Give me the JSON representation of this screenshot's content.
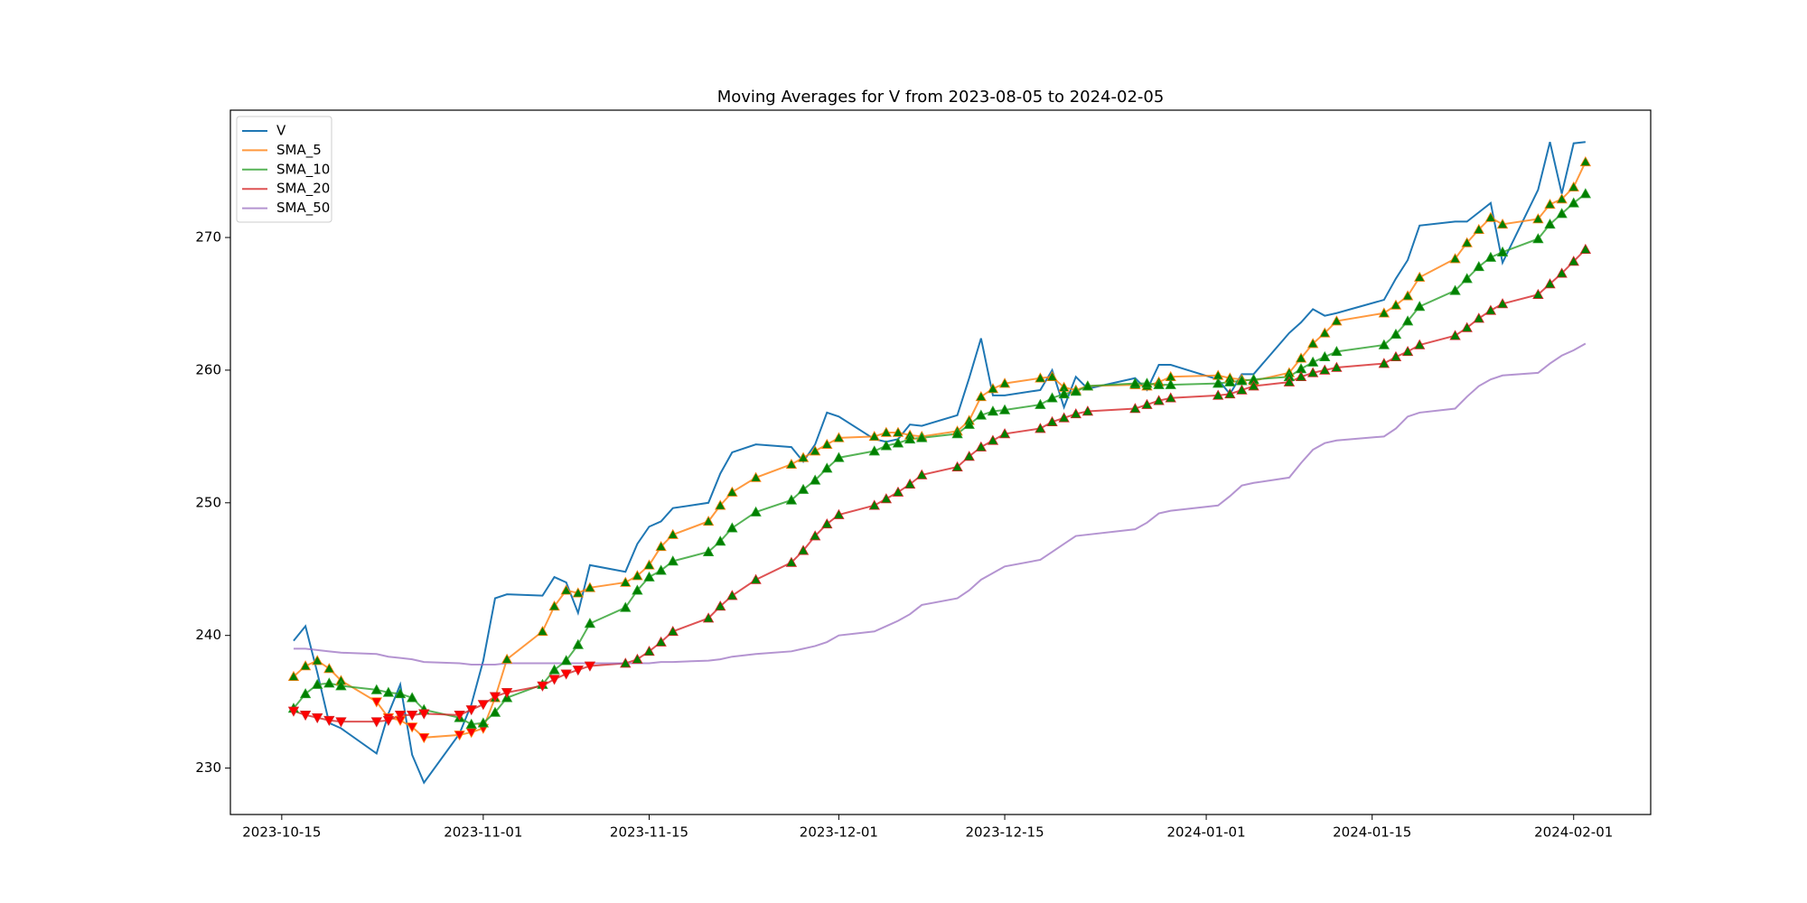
{
  "chart_data": {
    "type": "line",
    "title": "Moving Averages for V from 2023-08-05 to 2024-02-05",
    "x": [
      "2023-10-16",
      "2023-10-17",
      "2023-10-18",
      "2023-10-19",
      "2023-10-20",
      "2023-10-23",
      "2023-10-24",
      "2023-10-25",
      "2023-10-26",
      "2023-10-27",
      "2023-10-30",
      "2023-10-31",
      "2023-11-01",
      "2023-11-02",
      "2023-11-03",
      "2023-11-06",
      "2023-11-07",
      "2023-11-08",
      "2023-11-09",
      "2023-11-10",
      "2023-11-13",
      "2023-11-14",
      "2023-11-15",
      "2023-11-16",
      "2023-11-17",
      "2023-11-20",
      "2023-11-21",
      "2023-11-22",
      "2023-11-24",
      "2023-11-27",
      "2023-11-28",
      "2023-11-29",
      "2023-11-30",
      "2023-12-01",
      "2023-12-04",
      "2023-12-05",
      "2023-12-06",
      "2023-12-07",
      "2023-12-08",
      "2023-12-11",
      "2023-12-12",
      "2023-12-13",
      "2023-12-14",
      "2023-12-15",
      "2023-12-18",
      "2023-12-19",
      "2023-12-20",
      "2023-12-21",
      "2023-12-22",
      "2023-12-26",
      "2023-12-27",
      "2023-12-28",
      "2023-12-29",
      "2024-01-02",
      "2024-01-03",
      "2024-01-04",
      "2024-01-05",
      "2024-01-08",
      "2024-01-09",
      "2024-01-10",
      "2024-01-11",
      "2024-01-12",
      "2024-01-16",
      "2024-01-17",
      "2024-01-18",
      "2024-01-19",
      "2024-01-22",
      "2024-01-23",
      "2024-01-24",
      "2024-01-25",
      "2024-01-26",
      "2024-01-29",
      "2024-01-30",
      "2024-01-31",
      "2024-02-01",
      "2024-02-02"
    ],
    "series": [
      {
        "name": "V",
        "color": "#1f77b4",
        "opacity": 1,
        "values": [
          239.6,
          240.7,
          237.2,
          233.4,
          233.0,
          231.1,
          234.1,
          236.3,
          231.0,
          228.9,
          232.6,
          234.8,
          238.1,
          242.8,
          243.1,
          243.0,
          244.4,
          244.0,
          241.7,
          245.3,
          244.8,
          246.9,
          248.2,
          248.6,
          249.6,
          250.0,
          252.2,
          253.8,
          254.4,
          254.2,
          253.1,
          254.4,
          256.8,
          256.5,
          254.8,
          254.6,
          254.8,
          255.9,
          255.8,
          256.6,
          259.4,
          262.4,
          258.1,
          258.1,
          258.5,
          260.0,
          257.2,
          259.5,
          258.6,
          259.4,
          258.5,
          260.4,
          260.4,
          259.3,
          258.2,
          259.7,
          259.7,
          262.8,
          263.6,
          264.6,
          264.1,
          264.3,
          265.3,
          266.9,
          268.3,
          270.9,
          271.2,
          271.2,
          271.9,
          272.6,
          268.1,
          273.6,
          277.2,
          273.3,
          277.1,
          277.2
        ]
      },
      {
        "name": "SMA_5",
        "color": "#ff7f0e",
        "opacity": 0.8,
        "values": [
          236.9,
          237.7,
          238.1,
          237.5,
          236.6,
          235.0,
          233.8,
          233.6,
          233.1,
          232.3,
          232.5,
          232.7,
          233.0,
          235.3,
          238.2,
          240.3,
          242.2,
          243.4,
          243.2,
          243.6,
          244.0,
          244.5,
          245.3,
          246.7,
          247.6,
          248.6,
          249.8,
          250.8,
          251.9,
          252.9,
          253.4,
          253.9,
          254.4,
          254.9,
          255.0,
          255.3,
          255.3,
          255.1,
          255.0,
          255.4,
          256.2,
          258.0,
          258.6,
          259.0,
          259.4,
          259.5,
          258.7,
          258.5,
          258.8,
          258.9,
          258.8,
          259.1,
          259.5,
          259.6,
          259.4,
          259.3,
          259.2,
          259.8,
          260.9,
          262.0,
          262.8,
          263.7,
          264.3,
          264.9,
          265.6,
          267.0,
          268.4,
          269.6,
          270.6,
          271.5,
          271.0,
          271.4,
          272.5,
          272.9,
          273.8,
          275.7
        ],
        "markers": [
          "^",
          "^",
          "^",
          "^",
          "^",
          "v",
          "v",
          "v",
          "v",
          "v",
          "v",
          "v",
          "v",
          "^",
          "^",
          "^",
          "^",
          "^",
          "^",
          "^",
          "^",
          "^",
          "^",
          "^",
          "^",
          "^",
          "^",
          "^",
          "^",
          "^",
          "^",
          "^",
          "^",
          "^",
          "^",
          "^",
          "^",
          "^",
          "^",
          "^",
          "^",
          "^",
          "^",
          "^",
          "^",
          "^",
          "^",
          "^",
          "^",
          "^",
          "^",
          "^",
          "^",
          "^",
          "^",
          "^",
          "^",
          "^",
          "^",
          "^",
          "^",
          "^",
          "^",
          "^",
          "^",
          "^",
          "^",
          "^",
          "^",
          "^",
          "^",
          "^",
          "^",
          "^",
          "^",
          "^"
        ]
      },
      {
        "name": "SMA_10",
        "color": "#2ca02c",
        "opacity": 0.8,
        "values": [
          234.5,
          235.6,
          236.3,
          236.4,
          236.2,
          235.9,
          235.7,
          235.6,
          235.3,
          234.4,
          233.8,
          233.3,
          233.4,
          234.2,
          235.3,
          236.3,
          237.4,
          238.1,
          239.3,
          240.9,
          242.1,
          243.4,
          244.4,
          244.9,
          245.6,
          246.3,
          247.1,
          248.1,
          249.3,
          250.2,
          251.0,
          251.7,
          252.6,
          253.4,
          253.9,
          254.3,
          254.5,
          254.8,
          254.9,
          255.2,
          255.9,
          256.6,
          256.9,
          257.0,
          257.4,
          257.9,
          258.2,
          258.4,
          258.8,
          259.0,
          259.0,
          258.9,
          258.9,
          259.0,
          259.1,
          259.2,
          259.3,
          259.5,
          260.1,
          260.6,
          261.0,
          261.4,
          261.9,
          262.7,
          263.7,
          264.8,
          266.0,
          266.9,
          267.8,
          268.5,
          268.9,
          269.9,
          271.0,
          271.8,
          272.6,
          273.3
        ],
        "markers": [
          "^",
          "^",
          "^",
          "^",
          "^",
          "^",
          "^",
          "^",
          "^",
          "^",
          "^",
          "^",
          "^",
          "^",
          "^",
          "^",
          "^",
          "^",
          "^",
          "^",
          "^",
          "^",
          "^",
          "^",
          "^",
          "^",
          "^",
          "^",
          "^",
          "^",
          "^",
          "^",
          "^",
          "^",
          "^",
          "^",
          "^",
          "^",
          "^",
          "^",
          "^",
          "^",
          "^",
          "^",
          "^",
          "^",
          "^",
          "^",
          "^",
          "^",
          "^",
          "^",
          "^",
          "^",
          "^",
          "^",
          "^",
          "^",
          "^",
          "^",
          "^",
          "^",
          "^",
          "^",
          "^",
          "^",
          "^",
          "^",
          "^",
          "^",
          "^",
          "^",
          "^",
          "^",
          "^",
          "^"
        ]
      },
      {
        "name": "SMA_20",
        "color": "#d62728",
        "opacity": 0.8,
        "values": [
          234.3,
          234.0,
          233.8,
          233.6,
          233.5,
          233.5,
          233.6,
          234.0,
          234.0,
          234.1,
          234.0,
          234.4,
          234.8,
          235.4,
          235.7,
          236.2,
          236.7,
          237.1,
          237.4,
          237.7,
          237.9,
          238.2,
          238.8,
          239.5,
          240.3,
          241.3,
          242.2,
          243.0,
          244.2,
          245.5,
          246.4,
          247.5,
          248.4,
          249.1,
          249.8,
          250.3,
          250.8,
          251.4,
          252.1,
          252.7,
          253.5,
          254.2,
          254.7,
          255.2,
          255.6,
          256.1,
          256.4,
          256.7,
          256.9,
          257.1,
          257.4,
          257.7,
          257.9,
          258.1,
          258.2,
          258.5,
          258.8,
          259.1,
          259.5,
          259.8,
          260.0,
          260.2,
          260.5,
          261.0,
          261.4,
          261.9,
          262.6,
          263.2,
          263.9,
          264.5,
          265.0,
          265.7,
          266.5,
          267.3,
          268.2,
          269.1
        ],
        "markers": [
          "v",
          "v",
          "v",
          "v",
          "v",
          "v",
          "v",
          "v",
          "v",
          "v",
          "v",
          "v",
          "v",
          "v",
          "v",
          "v",
          "v",
          "v",
          "v",
          "v",
          "^",
          "^",
          "^",
          "^",
          "^",
          "^",
          "^",
          "^",
          "^",
          "^",
          "^",
          "^",
          "^",
          "^",
          "^",
          "^",
          "^",
          "^",
          "^",
          "^",
          "^",
          "^",
          "^",
          "^",
          "^",
          "^",
          "^",
          "^",
          "^",
          "^",
          "^",
          "^",
          "^",
          "^",
          "^",
          "^",
          "^",
          "^",
          "^",
          "^",
          "^",
          "^",
          "^",
          "^",
          "^",
          "^",
          "^",
          "^",
          "^",
          "^",
          "^",
          "^",
          "^",
          "^",
          "^",
          "^"
        ]
      },
      {
        "name": "SMA_50",
        "color": "#9467bd",
        "opacity": 0.7,
        "values": [
          239.0,
          239.0,
          238.9,
          238.8,
          238.7,
          238.6,
          238.4,
          238.3,
          238.2,
          238.0,
          237.9,
          237.8,
          237.8,
          237.8,
          237.9,
          237.9,
          237.9,
          237.9,
          237.9,
          237.9,
          237.9,
          237.9,
          237.9,
          238.0,
          238.0,
          238.1,
          238.2,
          238.4,
          238.6,
          238.8,
          239.0,
          239.2,
          239.5,
          240.0,
          240.3,
          240.7,
          241.1,
          241.6,
          242.3,
          242.8,
          243.4,
          244.2,
          244.7,
          245.2,
          245.7,
          246.3,
          246.9,
          247.5,
          247.6,
          248.0,
          248.5,
          249.2,
          249.4,
          249.8,
          250.5,
          251.3,
          251.5,
          251.9,
          253.0,
          254.0,
          254.5,
          254.7,
          255.0,
          255.6,
          256.5,
          256.8,
          257.1,
          258.0,
          258.8,
          259.3,
          259.6,
          259.8,
          260.5,
          261.1,
          261.5,
          262.0
        ]
      }
    ],
    "marker_colors": {
      "^": "#008000",
      "v": "#ff0000"
    },
    "xlim": [
      "2023-10-10T16:00",
      "2024-02-07T12:00"
    ],
    "xticks": [
      "2023-10-15",
      "2023-11-01",
      "2023-11-15",
      "2023-12-01",
      "2023-12-15",
      "2024-01-01",
      "2024-01-15",
      "2024-02-01"
    ],
    "ylim": [
      226.5,
      279.6
    ],
    "yticks": [
      230,
      240,
      250,
      260,
      270
    ],
    "legend": "upper left"
  }
}
